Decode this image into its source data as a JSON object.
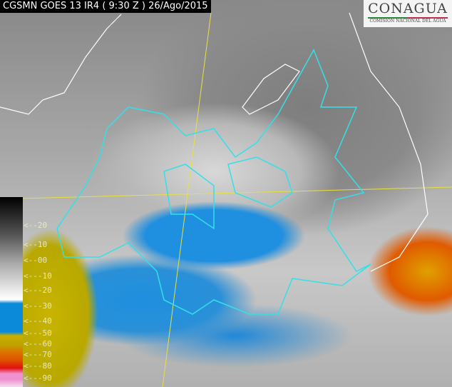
{
  "header": {
    "title": "CGSMN GOES 13 IR4 ( 9:30 Z ) 26/Ago/2015"
  },
  "logo": {
    "name": "CONAGUA",
    "subtitle": "COMISIÓN NACIONAL DEL AGUA"
  },
  "legend": {
    "arrow": "<--",
    "labels": [
      "20",
      "10",
      "00",
      "-10",
      "-20",
      "-30",
      "-40",
      "-50",
      "-60",
      "-70",
      "-80",
      "-90"
    ]
  },
  "colors": {
    "borders": "#ffffff",
    "state_outline": "#33e0e8",
    "gridlines": "#e8e040",
    "cold_cloud": "#1f8fdf",
    "very_cold": "#c8b000",
    "coldest": "#e05000"
  }
}
